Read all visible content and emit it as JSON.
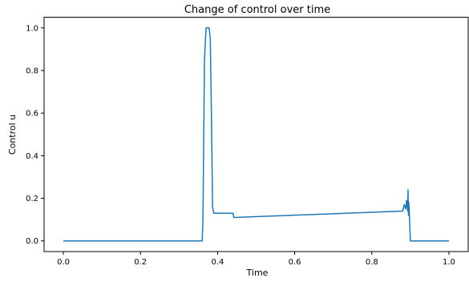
{
  "chart_data": {
    "type": "line",
    "title": "Change of control over time",
    "xlabel": "Time",
    "ylabel": "Control u",
    "xlim": [
      -0.05,
      1.05
    ],
    "ylim": [
      -0.05,
      1.05
    ],
    "x_ticks": [
      0.0,
      0.2,
      0.4,
      0.6,
      0.8,
      1.0
    ],
    "x_tick_labels": [
      "0.0",
      "0.2",
      "0.4",
      "0.6",
      "0.8",
      "1.0"
    ],
    "y_ticks": [
      0.0,
      0.2,
      0.4,
      0.6,
      0.8,
      1.0
    ],
    "y_tick_labels": [
      "0.0",
      "0.2",
      "0.4",
      "0.6",
      "0.8",
      "1.0"
    ],
    "grid": false,
    "legend": "none",
    "series": [
      {
        "color": "#1f77b4",
        "x": [
          0.0,
          0.36,
          0.362,
          0.366,
          0.37,
          0.378,
          0.381,
          0.384,
          0.387,
          0.39,
          0.44,
          0.441,
          0.442,
          0.88,
          0.884,
          0.888,
          0.89,
          0.892,
          0.893,
          0.894,
          0.895,
          0.896,
          0.897,
          0.898,
          0.899,
          0.9,
          1.0
        ],
        "y": [
          0.0,
          0.0,
          0.1,
          0.85,
          1.0,
          1.0,
          0.95,
          0.6,
          0.16,
          0.13,
          0.13,
          0.12,
          0.11,
          0.14,
          0.17,
          0.15,
          0.19,
          0.16,
          0.14,
          0.24,
          0.12,
          0.18,
          0.15,
          0.1,
          0.05,
          0.0,
          0.0
        ]
      }
    ]
  }
}
